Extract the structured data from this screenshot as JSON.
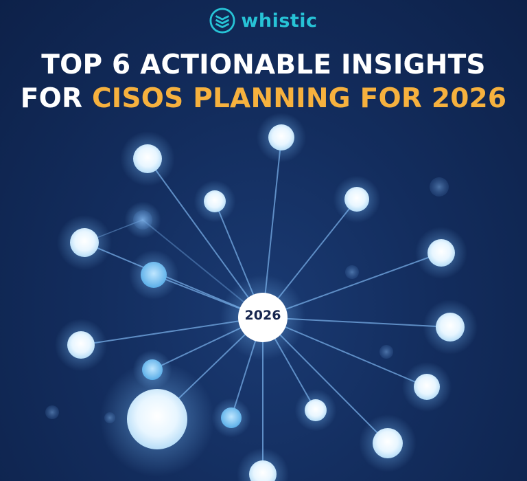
{
  "brand": {
    "name": "whistic",
    "icon": "layered-shield-icon",
    "color": "#27c3d6"
  },
  "headline": {
    "line1": "TOP 6 ACTIONABLE INSIGHTS",
    "line2_prefix": "FOR ",
    "line2_highlight": "CISOS PLANNING FOR 2026",
    "text_color": "#ffffff",
    "highlight_color": "#f6b13e"
  },
  "network": {
    "hub_label": "2026",
    "background_color": "#132d5e",
    "node_color": "#dff3ff",
    "line_color": "#6b9dd6"
  }
}
